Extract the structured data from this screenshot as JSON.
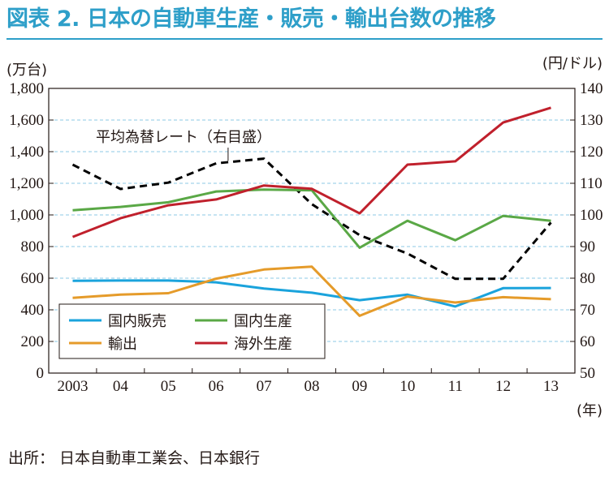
{
  "title": "図表 2. 日本の自動車生産・販売・輸出台数の推移",
  "source": "出所：  日本自動車工業会、日本銀行",
  "chart_data": {
    "type": "line",
    "x_tick_labels": [
      "2003",
      "04",
      "05",
      "06",
      "07",
      "08",
      "09",
      "10",
      "11",
      "12",
      "13"
    ],
    "x_unit": "(年)",
    "left_axis": {
      "unit": "(万台)",
      "ylim": [
        0,
        1800
      ],
      "ticks": [
        0,
        200,
        400,
        600,
        800,
        1000,
        1200,
        1400,
        1600,
        1800
      ],
      "tick_labels": [
        "0",
        "200",
        "400",
        "600",
        "800",
        "1,000",
        "1,200",
        "1,400",
        "1,600",
        "1,800"
      ]
    },
    "right_axis": {
      "unit": "(円/ドル)",
      "ylim": [
        50,
        140
      ],
      "ticks": [
        50,
        60,
        70,
        80,
        90,
        100,
        110,
        120,
        130,
        140
      ],
      "tick_labels": [
        "50",
        "60",
        "70",
        "80",
        "90",
        "100",
        "110",
        "120",
        "130",
        "140"
      ]
    },
    "grid": true,
    "legend_position": "bottom-left",
    "series": [
      {
        "name": "国内販売",
        "axis": "left",
        "color": "#1aa3dc",
        "style": "solid",
        "values": [
          583,
          585,
          585,
          574,
          535,
          508,
          461,
          496,
          421,
          537,
          538
        ]
      },
      {
        "name": "国内生産",
        "axis": "left",
        "color": "#5aa846",
        "style": "solid",
        "values": [
          1029,
          1051,
          1080,
          1148,
          1160,
          1156,
          793,
          963,
          840,
          994,
          963
        ]
      },
      {
        "name": "輸出",
        "axis": "left",
        "color": "#e59b2a",
        "style": "solid",
        "values": [
          476,
          496,
          505,
          597,
          655,
          673,
          362,
          484,
          446,
          480,
          467
        ]
      },
      {
        "name": "海外生産",
        "axis": "left",
        "color": "#c0202c",
        "style": "solid",
        "values": [
          861,
          979,
          1061,
          1098,
          1186,
          1165,
          1010,
          1318,
          1339,
          1584,
          1678
        ]
      },
      {
        "name": "平均為替レート（右目盛）",
        "axis": "right",
        "color": "#000000",
        "style": "dashed",
        "values": [
          115.9,
          108.2,
          110.2,
          116.3,
          117.8,
          103.4,
          93.6,
          87.8,
          79.8,
          79.8,
          97.6
        ]
      }
    ],
    "legend_series": [
      0,
      1,
      2,
      3
    ],
    "annotation": {
      "text": "平均為替レート（右目盛）",
      "series_index": 4
    }
  }
}
